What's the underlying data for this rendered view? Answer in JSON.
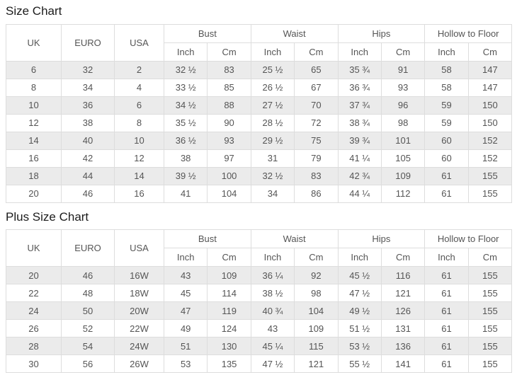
{
  "size_chart": {
    "title": "Size Chart",
    "headers": {
      "uk": "UK",
      "euro": "EURO",
      "usa": "USA",
      "bust": "Bust",
      "waist": "Waist",
      "hips": "Hips",
      "hollow": "Hollow to Floor",
      "inch": "Inch",
      "cm": "Cm"
    },
    "rows": [
      [
        "6",
        "32",
        "2",
        "32 ½",
        "83",
        "25 ½",
        "65",
        "35 ¾",
        "91",
        "58",
        "147"
      ],
      [
        "8",
        "34",
        "4",
        "33 ½",
        "85",
        "26 ½",
        "67",
        "36 ¾",
        "93",
        "58",
        "147"
      ],
      [
        "10",
        "36",
        "6",
        "34 ½",
        "88",
        "27 ½",
        "70",
        "37 ¾",
        "96",
        "59",
        "150"
      ],
      [
        "12",
        "38",
        "8",
        "35 ½",
        "90",
        "28 ½",
        "72",
        "38 ¾",
        "98",
        "59",
        "150"
      ],
      [
        "14",
        "40",
        "10",
        "36 ½",
        "93",
        "29 ½",
        "75",
        "39 ¾",
        "101",
        "60",
        "152"
      ],
      [
        "16",
        "42",
        "12",
        "38",
        "97",
        "31",
        "79",
        "41 ¼",
        "105",
        "60",
        "152"
      ],
      [
        "18",
        "44",
        "14",
        "39 ½",
        "100",
        "32 ½",
        "83",
        "42 ¾",
        "109",
        "61",
        "155"
      ],
      [
        "20",
        "46",
        "16",
        "41",
        "104",
        "34",
        "86",
        "44 ¼",
        "112",
        "61",
        "155"
      ]
    ]
  },
  "plus_size_chart": {
    "title": "Plus Size Chart",
    "headers": {
      "uk": "UK",
      "euro": "EURO",
      "usa": "USA",
      "bust": "Bust",
      "waist": "Waist",
      "hips": "Hips",
      "hollow": "Hollow to Floor",
      "inch": "Inch",
      "cm": "Cm"
    },
    "rows": [
      [
        "20",
        "46",
        "16W",
        "43",
        "109",
        "36 ¼",
        "92",
        "45 ½",
        "116",
        "61",
        "155"
      ],
      [
        "22",
        "48",
        "18W",
        "45",
        "114",
        "38 ½",
        "98",
        "47 ½",
        "121",
        "61",
        "155"
      ],
      [
        "24",
        "50",
        "20W",
        "47",
        "119",
        "40 ¾",
        "104",
        "49 ½",
        "126",
        "61",
        "155"
      ],
      [
        "26",
        "52",
        "22W",
        "49",
        "124",
        "43",
        "109",
        "51 ½",
        "131",
        "61",
        "155"
      ],
      [
        "28",
        "54",
        "24W",
        "51",
        "130",
        "45 ¼",
        "115",
        "53 ½",
        "136",
        "61",
        "155"
      ],
      [
        "30",
        "56",
        "26W",
        "53",
        "135",
        "47 ½",
        "121",
        "55 ½",
        "141",
        "61",
        "155"
      ]
    ]
  },
  "colors": {
    "stripe_row": "#ebebeb",
    "border": "#dddddd",
    "cell_text": "#555555",
    "title_text": "#1c1c1c"
  }
}
